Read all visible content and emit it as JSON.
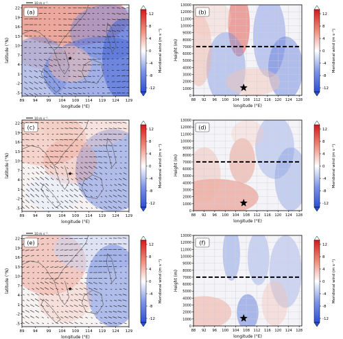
{
  "figure": {
    "colorbar_label": "Meridional wind (m s⁻¹)",
    "colorbar_ticks": [
      12,
      8,
      4,
      0,
      -4,
      -8,
      -12
    ],
    "colormap": {
      "positive": "#d7191c",
      "negative": "#2c5fd6",
      "zero": "#ffffff"
    }
  },
  "chart_data": [
    {
      "type": "heatmap",
      "panel_label": "(a)",
      "xlabel": "longitude (°E)",
      "ylabel": "latitude (°N)",
      "x_ticks": [
        "89",
        "94",
        "99",
        "104",
        "109",
        "114",
        "119",
        "124",
        "129"
      ],
      "y_ticks": [
        "22",
        "19",
        "16",
        "13",
        "10",
        "7",
        "4",
        "1",
        "-2",
        "-5"
      ],
      "xlim": [
        89,
        129
      ],
      "ylim": [
        -6,
        23
      ],
      "reference_vector": "10 m s⁻¹",
      "marker": {
        "lon": 107,
        "lat": 6,
        "symbol": "star"
      }
    },
    {
      "type": "heatmap",
      "panel_label": "(b)",
      "xlabel": "longitude (°E)",
      "ylabel": "Height (m)",
      "x_ticks": [
        "88",
        "92",
        "96",
        "100",
        "104",
        "108",
        "112",
        "116",
        "120",
        "124",
        "128"
      ],
      "y_ticks": [
        "13000",
        "12000",
        "11000",
        "10000",
        "9000",
        "8000",
        "7000",
        "6000",
        "5000",
        "4000",
        "3000",
        "2000",
        "1000",
        "0"
      ],
      "xlim": [
        88,
        129
      ],
      "ylim": [
        0,
        13000
      ],
      "dashed_line_height": 7000,
      "marker": {
        "lon": 107,
        "height": 1100,
        "symbol": "star"
      }
    },
    {
      "type": "heatmap",
      "panel_label": "(c)",
      "xlabel": "longitude (°E)",
      "ylabel": "latitude (°N)",
      "x_ticks": [
        "89",
        "94",
        "99",
        "104",
        "109",
        "114",
        "119",
        "124",
        "129"
      ],
      "y_ticks": [
        "22",
        "19",
        "16",
        "13",
        "10",
        "7",
        "4",
        "1",
        "-2",
        "-5"
      ],
      "xlim": [
        89,
        129
      ],
      "ylim": [
        -6,
        23
      ],
      "reference_vector": "10 m s⁻¹",
      "marker": {
        "lon": 107,
        "lat": 6,
        "symbol": "star"
      }
    },
    {
      "type": "heatmap",
      "panel_label": "(d)",
      "xlabel": "longitude (°E)",
      "ylabel": "Height (m)",
      "x_ticks": [
        "88",
        "92",
        "96",
        "100",
        "104",
        "108",
        "112",
        "116",
        "120",
        "124",
        "128"
      ],
      "y_ticks": [
        "13000",
        "12000",
        "11000",
        "10000",
        "9000",
        "8000",
        "7000",
        "6000",
        "5000",
        "4000",
        "3000",
        "2000",
        "1000",
        "0"
      ],
      "xlim": [
        88,
        129
      ],
      "ylim": [
        0,
        13000
      ],
      "dashed_line_height": 7000,
      "marker": {
        "lon": 107,
        "height": 1100,
        "symbol": "star"
      }
    },
    {
      "type": "heatmap",
      "panel_label": "(e)",
      "xlabel": "longitude (°E)",
      "ylabel": "latitude (°N)",
      "x_ticks": [
        "89",
        "94",
        "99",
        "104",
        "109",
        "114",
        "119",
        "124",
        "129"
      ],
      "y_ticks": [
        "22",
        "19",
        "16",
        "13",
        "10",
        "7",
        "4",
        "1",
        "-2",
        "-5"
      ],
      "xlim": [
        89,
        129
      ],
      "ylim": [
        -6,
        23
      ],
      "reference_vector": "10 m s⁻¹",
      "marker": {
        "lon": 107,
        "lat": 6,
        "symbol": "star"
      }
    },
    {
      "type": "heatmap",
      "panel_label": "(f)",
      "xlabel": "longitude (°E)",
      "ylabel": "Height (m)",
      "x_ticks": [
        "88",
        "92",
        "96",
        "100",
        "104",
        "108",
        "112",
        "116",
        "120",
        "124",
        "128"
      ],
      "y_ticks": [
        "13000",
        "12000",
        "11000",
        "10000",
        "9000",
        "8000",
        "7000",
        "6000",
        "5000",
        "4000",
        "3000",
        "2000",
        "1000",
        "0"
      ],
      "xlim": [
        88,
        129
      ],
      "ylim": [
        0,
        13000
      ],
      "dashed_line_height": 7000,
      "marker": {
        "lon": 107,
        "height": 1100,
        "symbol": "star"
      }
    }
  ]
}
